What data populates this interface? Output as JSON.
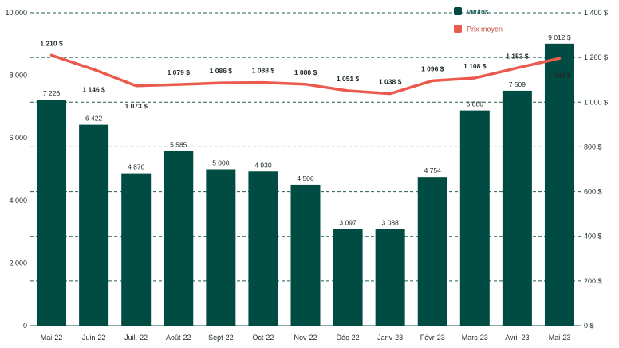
{
  "colors": {
    "bar": "#004b42",
    "line": "#ea5a4e",
    "grid": "#1f5c53",
    "legend_bar_text": "#004b42",
    "legend_line_text": "#c44b42"
  },
  "chart_data": {
    "type": "bar",
    "title": "",
    "xlabel": "",
    "ylabel": "",
    "categories": [
      "Mai-22",
      "Juin-22",
      "Juil.-22",
      "Août-22",
      "Sept-22",
      "Oct-22",
      "Nov-22",
      "Déc-22",
      "Janv-23",
      "Févr-23",
      "Mars-23",
      "Avril-23",
      "Mai-23"
    ],
    "series": [
      {
        "name": "Ventes",
        "type": "bar",
        "axis": "left",
        "values": [
          7226,
          6422,
          4870,
          5585,
          5000,
          4930,
          4506,
          3097,
          3088,
          4754,
          6880,
          7509,
          9012
        ],
        "labels": [
          "7 226",
          "6 422",
          "4 870",
          "5 585",
          "5 000",
          "4 930",
          "4 506",
          "3 097",
          "3 088",
          "4 754",
          "6 880",
          "7 509",
          "9 012 $"
        ]
      },
      {
        "name": "Prix moyen",
        "type": "line",
        "axis": "right",
        "values": [
          1210,
          1146,
          1073,
          1079,
          1086,
          1088,
          1080,
          1051,
          1038,
          1096,
          1108,
          1153,
          1196
        ],
        "labels": [
          "1 210 $",
          "1 146 $",
          "1 073 $",
          "1 079 $",
          "1 086 $",
          "1 088 $",
          "1 080 $",
          "1 051 $",
          "1 038 $",
          "1 096 $",
          "1 108 $",
          "1 153 $",
          "1 196 $"
        ]
      }
    ],
    "ylim": [
      0,
      10000
    ],
    "y2lim": [
      0,
      1400
    ],
    "left_ticks": [
      "0",
      "2 000",
      "4 000",
      "6 000",
      "8 000",
      "10 000"
    ],
    "right_ticks": [
      "0 $",
      "200 $",
      "400 $",
      "600 $",
      "800 $",
      "1 000 $",
      "1 200 $",
      "1 400 $"
    ],
    "grid": true,
    "legend_position": "top-right"
  }
}
